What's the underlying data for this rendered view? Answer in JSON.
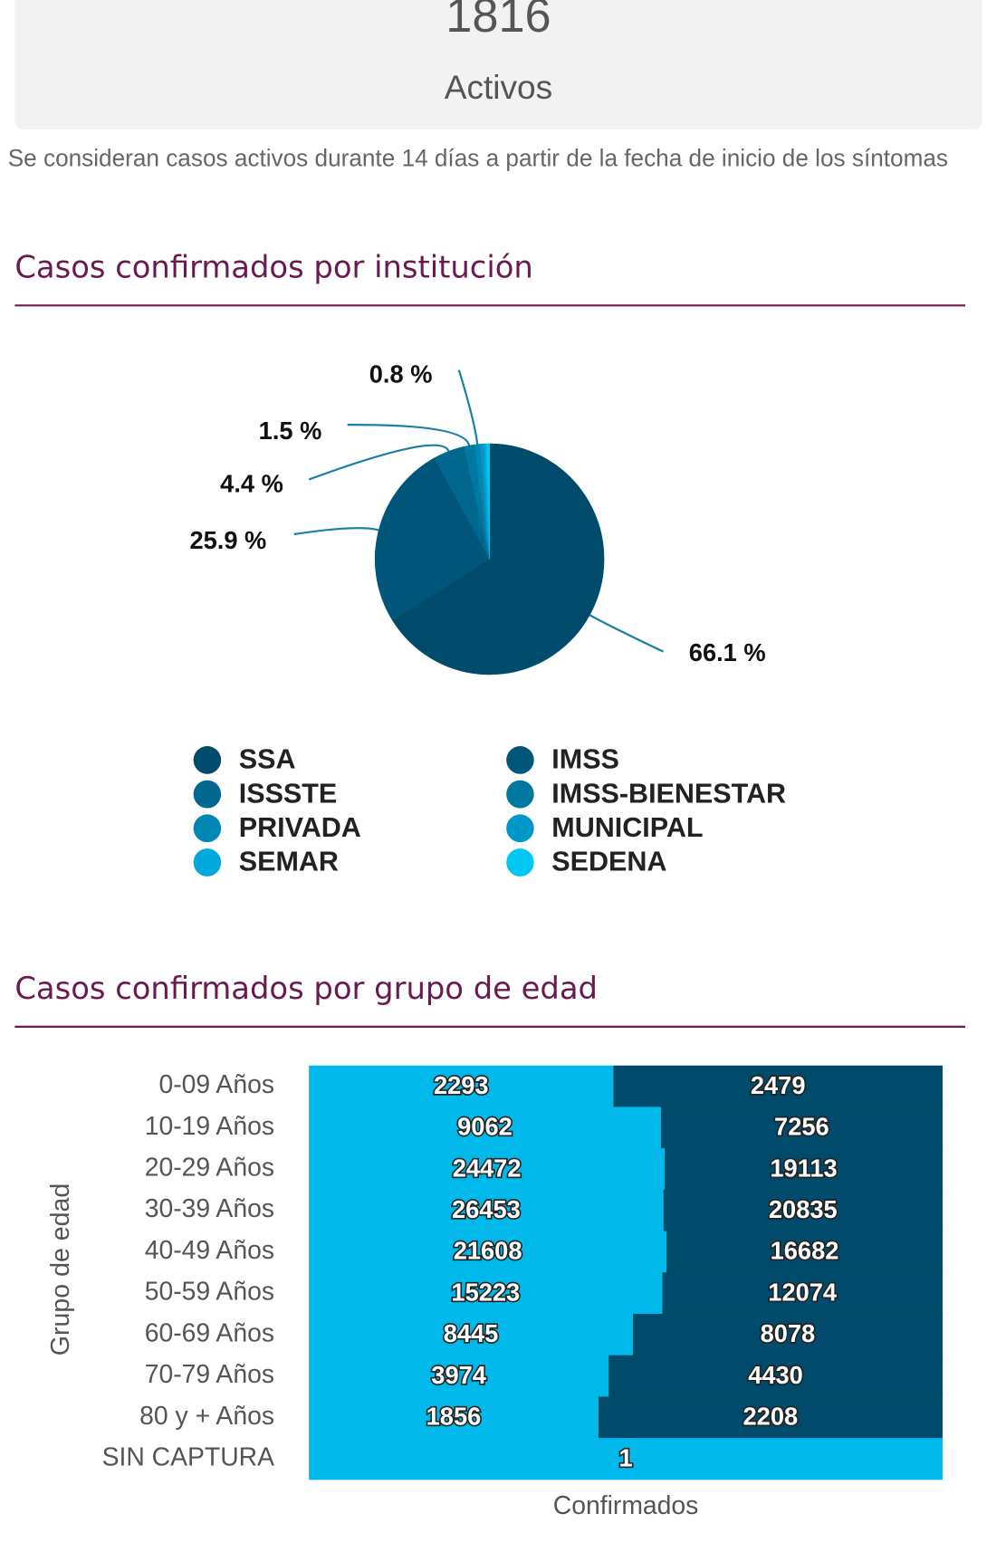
{
  "summary": {
    "value": 1816,
    "label": "Activos",
    "note": "Se consideran casos activos durante 14 días a partir de la fecha de inicio de los síntomas"
  },
  "chart_data": [
    {
      "type": "pie",
      "title": "Casos confirmados por institución",
      "categories": [
        "SSA",
        "IMSS",
        "ISSSTE",
        "IMSS-BIENESTAR",
        "PRIVADA",
        "MUNICIPAL",
        "SEMAR",
        "SEDENA"
      ],
      "values": [
        66.1,
        25.9,
        4.4,
        1.5,
        0.8,
        0.5,
        0.4,
        0.4
      ],
      "value_labels": [
        "66.1 %",
        "25.9 %",
        "4.4 %",
        "1.5 %",
        "0.8 %",
        null,
        null,
        null
      ],
      "colors": [
        "#004b6b",
        "#00557a",
        "#00678f",
        "#0078a0",
        "#0087b4",
        "#0098c8",
        "#00a8dc",
        "#00c8f0"
      ],
      "legend": "bottom"
    },
    {
      "type": "stacked_bar_horizontal",
      "title": "Casos confirmados por grupo de edad",
      "stacking": "percent",
      "categories": [
        "0-09 Años",
        "10-19 Años",
        "20-29 Años",
        "30-39 Años",
        "40-49 Años",
        "50-59 Años",
        "60-69 Años",
        "70-79 Años",
        "80 y + Años",
        "SIN CAPTURA"
      ],
      "series": [
        {
          "color": "#00b8ea",
          "values": [
            2293,
            9062,
            24472,
            26453,
            21608,
            15223,
            8445,
            3974,
            1856,
            1
          ]
        },
        {
          "color": "#004b6b",
          "values": [
            2479,
            7256,
            19113,
            20835,
            16682,
            12074,
            8078,
            4430,
            2208,
            null
          ]
        }
      ],
      "xlabel": "Confirmados",
      "ylabel": "Grupo de edad"
    }
  ]
}
